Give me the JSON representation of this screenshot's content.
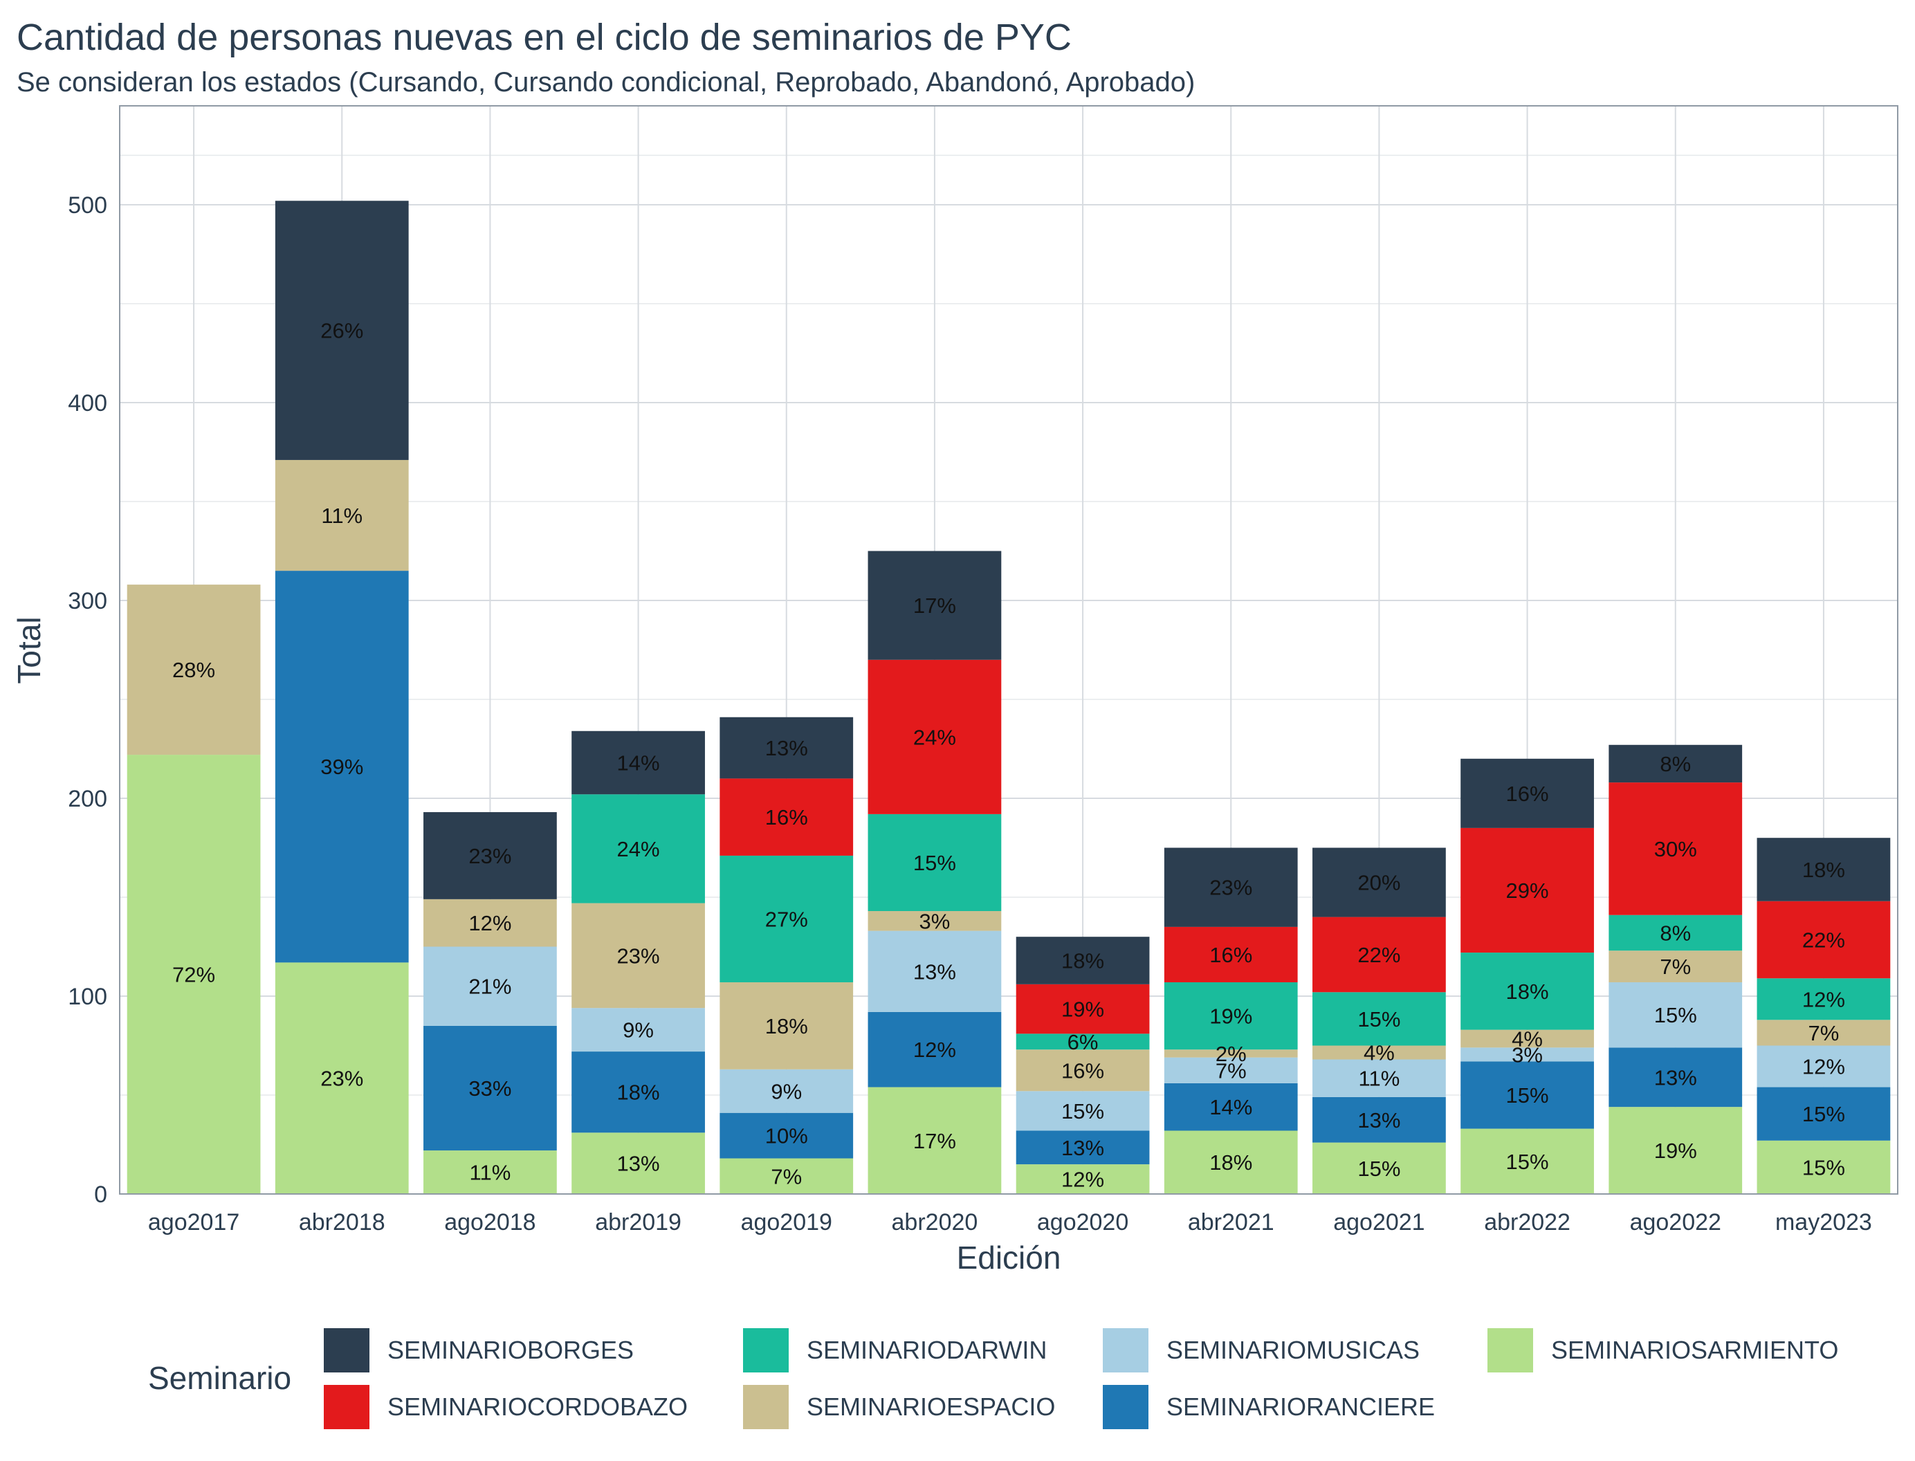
{
  "chart_data": {
    "type": "bar",
    "stacked": true,
    "title": "Cantidad de personas nuevas en el ciclo de seminarios de PYC",
    "subtitle": "Se consideran los estados (Cursando, Cursando condicional, Reprobado, Abandonó, Aprobado)",
    "xlabel": "Edición",
    "ylabel": "Total",
    "ylim": [
      0,
      550
    ],
    "yticks": [
      0,
      100,
      200,
      300,
      400,
      500
    ],
    "grid": true,
    "legend_title": "Seminario",
    "legend_position": "bottom",
    "categories": [
      "ago2017",
      "abr2018",
      "ago2018",
      "abr2019",
      "ago2019",
      "abr2020",
      "ago2020",
      "abr2021",
      "ago2021",
      "abr2022",
      "ago2022",
      "may2023"
    ],
    "legend_order": [
      "SEMINARIOBORGES",
      "SEMINARIOCORDOBAZO",
      "SEMINARIODARWIN",
      "SEMINARIOESPACIO",
      "SEMINARIOMUSICAS",
      "SEMINARIORANCIERE",
      "SEMINARIOSARMIENTO"
    ],
    "series": [
      {
        "name": "SEMINARIOSARMIENTO",
        "color": "#b2df8a",
        "values": [
          222,
          117,
          22,
          31,
          18,
          54,
          15,
          32,
          26,
          33,
          44,
          27
        ],
        "labels": [
          "72%",
          "23%",
          "11%",
          "13%",
          "7%",
          "17%",
          "12%",
          "18%",
          "15%",
          "15%",
          "19%",
          "15%"
        ]
      },
      {
        "name": "SEMINARIORANCIERE",
        "color": "#1f78b4",
        "values": [
          0,
          198,
          63,
          41,
          23,
          38,
          17,
          24,
          23,
          34,
          30,
          27
        ],
        "labels": [
          "",
          "39%",
          "33%",
          "18%",
          "10%",
          "12%",
          "13%",
          "14%",
          "13%",
          "15%",
          "13%",
          "15%"
        ]
      },
      {
        "name": "SEMINARIOMUSICAS",
        "color": "#a6cee3",
        "values": [
          0,
          0,
          40,
          22,
          22,
          41,
          20,
          13,
          19,
          7,
          33,
          21
        ],
        "labels": [
          "",
          "",
          "21%",
          "9%",
          "9%",
          "13%",
          "15%",
          "7%",
          "11%",
          "3%",
          "15%",
          "12%"
        ]
      },
      {
        "name": "SEMINARIOESPACIO",
        "color": "#cbbf90",
        "values": [
          86,
          56,
          24,
          53,
          44,
          10,
          21,
          4,
          7,
          9,
          16,
          13
        ],
        "labels": [
          "28%",
          "11%",
          "12%",
          "23%",
          "18%",
          "3%",
          "16%",
          "2%",
          "4%",
          "4%",
          "7%",
          "7%"
        ]
      },
      {
        "name": "SEMINARIODARWIN",
        "color": "#1abc9c",
        "values": [
          0,
          0,
          0,
          55,
          64,
          49,
          8,
          34,
          27,
          39,
          18,
          21
        ],
        "labels": [
          "",
          "",
          "",
          "24%",
          "27%",
          "15%",
          "6%",
          "19%",
          "15%",
          "18%",
          "8%",
          "12%"
        ]
      },
      {
        "name": "SEMINARIOCORDOBAZO",
        "color": "#e31a1c",
        "values": [
          0,
          0,
          0,
          0,
          39,
          78,
          25,
          28,
          38,
          63,
          67,
          39
        ],
        "labels": [
          "",
          "",
          "",
          "",
          "16%",
          "24%",
          "19%",
          "16%",
          "22%",
          "29%",
          "30%",
          "22%"
        ]
      },
      {
        "name": "SEMINARIOBORGES",
        "color": "#2c3e50",
        "values": [
          0,
          131,
          44,
          32,
          31,
          55,
          24,
          40,
          35,
          35,
          19,
          32
        ],
        "labels": [
          "",
          "26%",
          "23%",
          "14%",
          "13%",
          "17%",
          "18%",
          "23%",
          "20%",
          "16%",
          "8%",
          "18%"
        ]
      }
    ]
  }
}
